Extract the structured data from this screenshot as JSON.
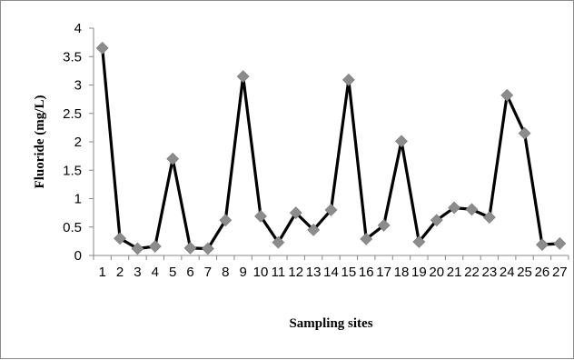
{
  "chart_data": {
    "type": "line",
    "title": "",
    "xlabel": "Sampling sites",
    "ylabel": "Fluoride (mg/L)",
    "ylim": [
      0,
      4
    ],
    "yticks": [
      "0",
      "0.5",
      "1",
      "1.5",
      "2",
      "2.5",
      "3",
      "3.5",
      "4"
    ],
    "grid": false,
    "legend": "none",
    "categories": [
      "1",
      "2",
      "3",
      "4",
      "5",
      "6",
      "7",
      "8",
      "9",
      "10",
      "11",
      "12",
      "13",
      "14",
      "15",
      "16",
      "17",
      "18",
      "19",
      "20",
      "21",
      "22",
      "23",
      "24",
      "25",
      "26",
      "27"
    ],
    "series": [
      {
        "values": [
          3.65,
          0.3,
          0.12,
          0.16,
          1.7,
          0.13,
          0.12,
          0.62,
          3.15,
          0.69,
          0.23,
          0.75,
          0.45,
          0.8,
          3.09,
          0.29,
          0.53,
          2.01,
          0.24,
          0.62,
          0.84,
          0.81,
          0.67,
          2.82,
          2.15,
          0.19,
          0.21
        ],
        "line_color": "#000000",
        "marker_color": "#8c8c8c",
        "marker": "diamond"
      }
    ]
  }
}
